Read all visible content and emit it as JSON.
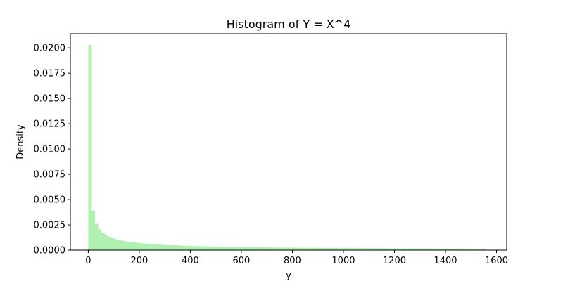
{
  "chart_data": {
    "type": "bar",
    "subtype": "histogram",
    "title": "Histogram of Y = X^4",
    "xlabel": "y",
    "ylabel": "Density",
    "xlim": [
      -70,
      1640
    ],
    "ylim": [
      0,
      0.0214
    ],
    "bar_color": "#b0f0b0",
    "grid": false,
    "legend": "none",
    "bins": {
      "start": 0,
      "width": 12.96,
      "values": [
        0.0203,
        0.00385,
        0.0026,
        0.00203,
        0.0017,
        0.00146,
        0.0013,
        0.00117,
        0.00107,
        0.00099,
        0.00092,
        0.00087,
        0.00082,
        0.00077,
        0.00074,
        0.0007,
        0.00067,
        0.00064,
        0.00061,
        0.00059,
        0.00057,
        0.00055,
        0.00053,
        0.00051,
        0.0005,
        0.00048,
        0.00047,
        0.00046,
        0.00044,
        0.00043,
        0.00042,
        0.00041,
        0.0004,
        0.00039,
        0.00038,
        0.00037,
        0.00037,
        0.00036,
        0.00035,
        0.00034,
        0.00034,
        0.00033,
        0.00032,
        0.00032,
        0.00031,
        0.00031,
        0.0003,
        0.0003,
        0.00029,
        0.00029,
        0.00028,
        0.00028,
        0.00027,
        0.00027,
        0.00027,
        0.00026,
        0.00026,
        0.00025,
        0.00025,
        0.00025,
        0.00024,
        0.00024,
        0.00024,
        0.00023,
        0.00023,
        0.00023,
        0.00023,
        0.00022,
        0.00022,
        0.00022,
        0.00022,
        0.00021,
        0.00021,
        0.00021,
        0.00021,
        0.0002,
        0.0002,
        0.0002,
        0.0002,
        0.0002,
        0.00019,
        0.00019,
        0.00019,
        0.00019,
        0.00019,
        0.00018,
        0.00018,
        0.00018,
        0.00018,
        0.00018,
        0.00018,
        0.00017,
        0.00017,
        0.00017,
        0.00017,
        0.00017,
        0.00017,
        0.00017,
        0.00016,
        0.00016,
        0.00016,
        0.00016,
        0.00016,
        0.00016,
        0.00016,
        0.00016,
        0.00015,
        0.00015,
        0.00015,
        0.00015,
        0.00015,
        0.00015,
        0.00015,
        0.00015,
        0.00015,
        0.00014,
        0.00014,
        0.00014,
        0.00014,
        0.00014
      ]
    },
    "xticks": [
      {
        "value": 0,
        "label": "0"
      },
      {
        "value": 200,
        "label": "200"
      },
      {
        "value": 400,
        "label": "400"
      },
      {
        "value": 600,
        "label": "600"
      },
      {
        "value": 800,
        "label": "800"
      },
      {
        "value": 1000,
        "label": "1000"
      },
      {
        "value": 1200,
        "label": "1200"
      },
      {
        "value": 1400,
        "label": "1400"
      },
      {
        "value": 1600,
        "label": "1600"
      }
    ],
    "yticks": [
      {
        "value": 0.0,
        "label": "0.0000"
      },
      {
        "value": 0.0025,
        "label": "0.0025"
      },
      {
        "value": 0.005,
        "label": "0.0050"
      },
      {
        "value": 0.0075,
        "label": "0.0075"
      },
      {
        "value": 0.01,
        "label": "0.0100"
      },
      {
        "value": 0.0125,
        "label": "0.0125"
      },
      {
        "value": 0.015,
        "label": "0.0150"
      },
      {
        "value": 0.0175,
        "label": "0.0175"
      },
      {
        "value": 0.02,
        "label": "0.0200"
      }
    ]
  }
}
